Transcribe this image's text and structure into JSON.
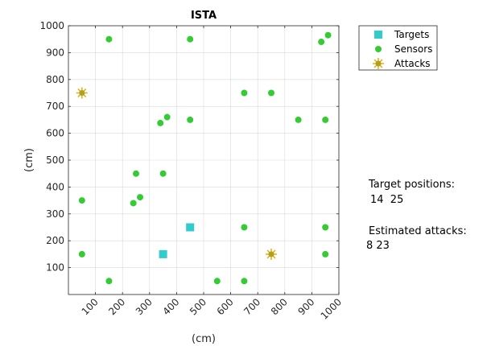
{
  "chart_data": {
    "type": "scatter",
    "title": "ISTA",
    "xlabel": "(cm)",
    "ylabel": "(cm)",
    "xlim": [
      0,
      1000
    ],
    "ylim": [
      0,
      1000
    ],
    "xticks": [
      100,
      200,
      300,
      400,
      500,
      600,
      700,
      800,
      900,
      1000
    ],
    "yticks": [
      100,
      200,
      300,
      400,
      500,
      600,
      700,
      800,
      900,
      1000
    ],
    "grid": true,
    "legend_position": "outside-top-right",
    "series": [
      {
        "name": "Targets",
        "marker": "square",
        "color": "#33cccc",
        "points": [
          [
            350,
            150
          ],
          [
            450,
            250
          ]
        ]
      },
      {
        "name": "Sensors",
        "marker": "circle",
        "color": "#33cc33",
        "points": [
          [
            150,
            950
          ],
          [
            450,
            950
          ],
          [
            935,
            940
          ],
          [
            960,
            965
          ],
          [
            650,
            750
          ],
          [
            750,
            750
          ],
          [
            365,
            660
          ],
          [
            340,
            638
          ],
          [
            450,
            650
          ],
          [
            850,
            650
          ],
          [
            950,
            650
          ],
          [
            250,
            450
          ],
          [
            350,
            450
          ],
          [
            50,
            350
          ],
          [
            265,
            362
          ],
          [
            240,
            340
          ],
          [
            650,
            250
          ],
          [
            950,
            250
          ],
          [
            50,
            150
          ],
          [
            950,
            150
          ],
          [
            150,
            50
          ],
          [
            550,
            50
          ],
          [
            650,
            50
          ]
        ]
      },
      {
        "name": "Attacks",
        "marker": "star",
        "color": "#e6a800",
        "points": [
          [
            50,
            750
          ],
          [
            750,
            150
          ]
        ]
      }
    ]
  },
  "annotations": {
    "target_label": "Target positions:",
    "target_values": "14  25",
    "attack_label": "Estimated attacks:",
    "attack_values": "8 23"
  }
}
